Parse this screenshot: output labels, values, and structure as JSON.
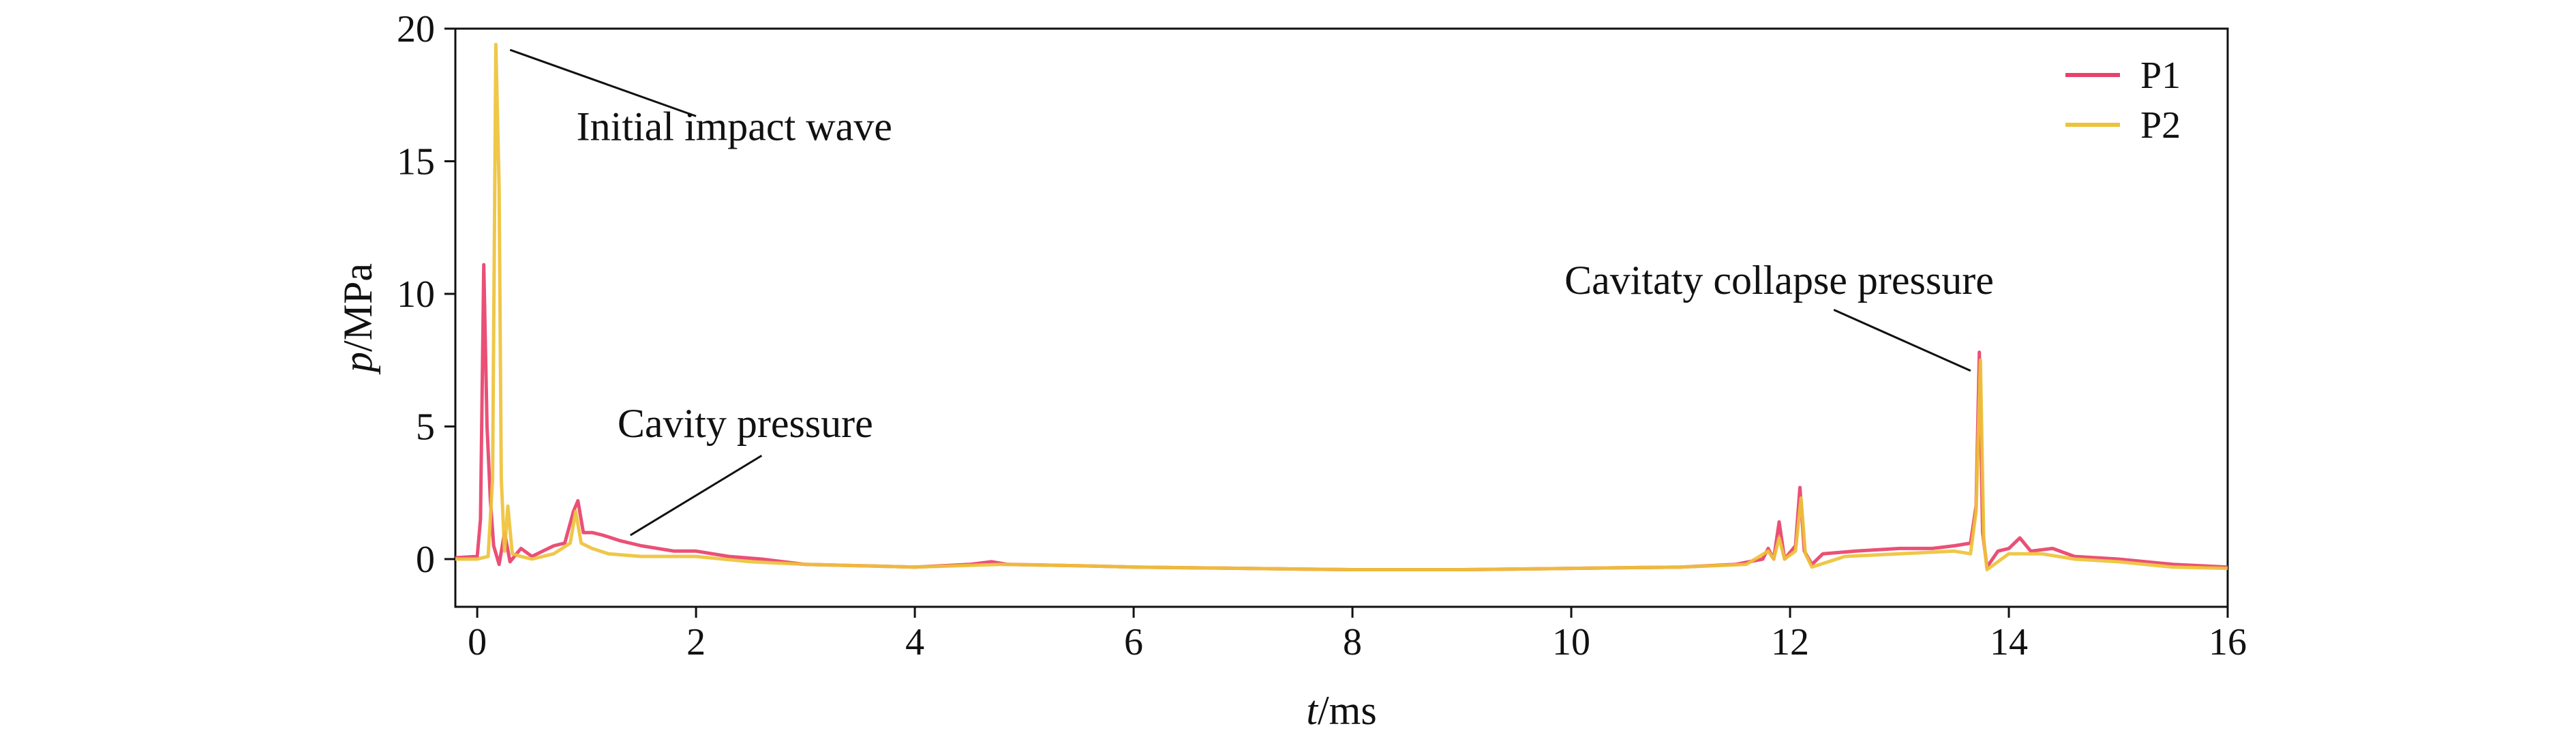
{
  "chart_data": {
    "type": "line",
    "title": "",
    "xlabel": {
      "italic": "t",
      "unit": "/ms"
    },
    "ylabel": {
      "italic": "p",
      "unit": "/MPa"
    },
    "xlim": [
      -0.2,
      16
    ],
    "ylim": [
      -1.8,
      20
    ],
    "xticks": [
      0,
      2,
      4,
      6,
      8,
      10,
      12,
      14,
      16
    ],
    "yticks": [
      0,
      5,
      10,
      15,
      20
    ],
    "grid": false,
    "legend": {
      "placement": "top-right"
    },
    "series": [
      {
        "name": "P1",
        "color": "#e8416a",
        "points": [
          [
            -0.2,
            0.05
          ],
          [
            0.0,
            0.1
          ],
          [
            0.03,
            1.5
          ],
          [
            0.06,
            11.1
          ],
          [
            0.09,
            5.0
          ],
          [
            0.12,
            2.2
          ],
          [
            0.15,
            0.5
          ],
          [
            0.2,
            -0.2
          ],
          [
            0.25,
            1.0
          ],
          [
            0.3,
            -0.1
          ],
          [
            0.4,
            0.4
          ],
          [
            0.5,
            0.1
          ],
          [
            0.6,
            0.3
          ],
          [
            0.7,
            0.5
          ],
          [
            0.8,
            0.6
          ],
          [
            0.88,
            1.8
          ],
          [
            0.92,
            2.2
          ],
          [
            0.97,
            1.0
          ],
          [
            1.05,
            1.0
          ],
          [
            1.15,
            0.9
          ],
          [
            1.3,
            0.7
          ],
          [
            1.5,
            0.5
          ],
          [
            1.8,
            0.3
          ],
          [
            2.0,
            0.3
          ],
          [
            2.3,
            0.1
          ],
          [
            2.6,
            0.0
          ],
          [
            3.0,
            -0.2
          ],
          [
            3.5,
            -0.25
          ],
          [
            4.0,
            -0.3
          ],
          [
            4.5,
            -0.2
          ],
          [
            4.7,
            -0.1
          ],
          [
            4.85,
            -0.2
          ],
          [
            5.5,
            -0.25
          ],
          [
            6.0,
            -0.3
          ],
          [
            7.0,
            -0.35
          ],
          [
            8.0,
            -0.4
          ],
          [
            9.0,
            -0.4
          ],
          [
            10.0,
            -0.35
          ],
          [
            11.0,
            -0.3
          ],
          [
            11.5,
            -0.2
          ],
          [
            11.75,
            0.0
          ],
          [
            11.8,
            0.4
          ],
          [
            11.85,
            0.0
          ],
          [
            11.9,
            1.4
          ],
          [
            11.95,
            0.0
          ],
          [
            12.05,
            0.5
          ],
          [
            12.09,
            2.7
          ],
          [
            12.13,
            0.3
          ],
          [
            12.2,
            -0.2
          ],
          [
            12.3,
            0.2
          ],
          [
            12.6,
            0.3
          ],
          [
            13.0,
            0.4
          ],
          [
            13.3,
            0.4
          ],
          [
            13.5,
            0.5
          ],
          [
            13.65,
            0.6
          ],
          [
            13.7,
            2.0
          ],
          [
            13.73,
            7.8
          ],
          [
            13.76,
            1.0
          ],
          [
            13.8,
            -0.3
          ],
          [
            13.9,
            0.3
          ],
          [
            14.0,
            0.4
          ],
          [
            14.1,
            0.8
          ],
          [
            14.2,
            0.3
          ],
          [
            14.4,
            0.4
          ],
          [
            14.6,
            0.1
          ],
          [
            15.0,
            0.0
          ],
          [
            15.5,
            -0.2
          ],
          [
            16.0,
            -0.3
          ]
        ]
      },
      {
        "name": "P2",
        "color": "#eec23a",
        "points": [
          [
            -0.2,
            0.0
          ],
          [
            0.0,
            0.0
          ],
          [
            0.1,
            0.1
          ],
          [
            0.14,
            3.0
          ],
          [
            0.17,
            19.4
          ],
          [
            0.2,
            14.0
          ],
          [
            0.22,
            3.0
          ],
          [
            0.25,
            0.3
          ],
          [
            0.28,
            2.0
          ],
          [
            0.32,
            0.2
          ],
          [
            0.4,
            0.1
          ],
          [
            0.5,
            0.0
          ],
          [
            0.7,
            0.2
          ],
          [
            0.85,
            0.6
          ],
          [
            0.9,
            1.8
          ],
          [
            0.95,
            0.6
          ],
          [
            1.05,
            0.4
          ],
          [
            1.2,
            0.2
          ],
          [
            1.5,
            0.1
          ],
          [
            2.0,
            0.1
          ],
          [
            2.5,
            -0.1
          ],
          [
            3.0,
            -0.2
          ],
          [
            4.0,
            -0.3
          ],
          [
            4.8,
            -0.2
          ],
          [
            5.5,
            -0.25
          ],
          [
            6.0,
            -0.3
          ],
          [
            7.0,
            -0.35
          ],
          [
            8.0,
            -0.4
          ],
          [
            9.0,
            -0.4
          ],
          [
            10.0,
            -0.35
          ],
          [
            11.0,
            -0.3
          ],
          [
            11.6,
            -0.2
          ],
          [
            11.8,
            0.3
          ],
          [
            11.85,
            0.0
          ],
          [
            11.9,
            0.8
          ],
          [
            11.95,
            0.0
          ],
          [
            12.05,
            0.3
          ],
          [
            12.1,
            2.3
          ],
          [
            12.14,
            0.2
          ],
          [
            12.2,
            -0.3
          ],
          [
            12.5,
            0.1
          ],
          [
            13.0,
            0.2
          ],
          [
            13.5,
            0.3
          ],
          [
            13.65,
            0.2
          ],
          [
            13.7,
            1.8
          ],
          [
            13.74,
            7.5
          ],
          [
            13.77,
            0.8
          ],
          [
            13.8,
            -0.4
          ],
          [
            14.0,
            0.2
          ],
          [
            14.3,
            0.2
          ],
          [
            14.6,
            0.0
          ],
          [
            15.0,
            -0.1
          ],
          [
            15.5,
            -0.3
          ],
          [
            16.0,
            -0.35
          ]
        ]
      }
    ],
    "annotations": [
      {
        "id": "initial",
        "text": "Initial impact wave",
        "text_at": [
          2.35,
          15.8
        ],
        "point": [
          0.3,
          19.2
        ],
        "line_end": [
          2.0,
          16.7
        ]
      },
      {
        "id": "cavity",
        "text": "Cavity pressure",
        "text_at": [
          2.45,
          4.6
        ],
        "point": [
          1.4,
          0.9
        ],
        "line_end": [
          2.6,
          3.9
        ]
      },
      {
        "id": "collapse",
        "text": "Cavitaty collapse pressure",
        "text_at": [
          11.9,
          10.0
        ],
        "point": [
          13.65,
          7.1
        ],
        "line_end": [
          12.4,
          9.4
        ]
      }
    ]
  }
}
